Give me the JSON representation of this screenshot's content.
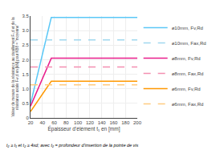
{
  "chart_data": {
    "type": "line",
    "x_label": "Épaisseur d’élément t₁ en [mm]",
    "y_label": "Valeur de mesure de la résistance au cisaillement Fᵥ,d et de la\nrésistance axiale Fₐˣ,d en [kN] pour KB8 = \"moyenne\"",
    "annotations": [
      "t₂ ≥ t₁ et t₂ ≥ 4xd; avec t₂ = profondeur d’insertion de la pointe de vis"
    ],
    "xlim": [
      20,
      200
    ],
    "ylim": [
      0.0,
      3.5
    ],
    "xticks": [
      20,
      40,
      60,
      80,
      100,
      120,
      140,
      160,
      180,
      200
    ],
    "yticks": [
      0,
      {
        "value": 0.5,
        "label": "0.5"
      },
      {
        "value": 1.0,
        "label": "1.0"
      },
      {
        "value": 1.5,
        "label": "1.5"
      },
      {
        "value": 2.0,
        "label": "2.0"
      },
      {
        "value": 2.5,
        "label": "2.5"
      },
      {
        "value": 3.0,
        "label": "3.0"
      },
      {
        "value": 3.5,
        "label": "3.5"
      }
    ],
    "grid": true,
    "legend": "right",
    "series": [
      {
        "name": "ø10mm, Fv,Rd",
        "color": "#5bc8f7",
        "line_style": "solid",
        "x": [
          20,
          55,
          200
        ],
        "values": [
          0.48,
          3.45,
          3.45
        ]
      },
      {
        "name": "ø10mm, Fax,Rd",
        "color": "#a0d8ef",
        "line_style": "dashed",
        "x": [
          20,
          200
        ],
        "values": [
          2.68,
          2.68
        ]
      },
      {
        "name": "ø8mm, Fv,Rd",
        "color": "#e91e8c",
        "line_style": "solid",
        "x": [
          20,
          55,
          200
        ],
        "values": [
          0.4,
          2.05,
          2.05
        ]
      },
      {
        "name": "ø8mm, Fax,Rd",
        "color": "#f48fb1",
        "line_style": "dashed",
        "x": [
          20,
          200
        ],
        "values": [
          1.75,
          1.75
        ]
      },
      {
        "name": "ø6mm, Fv,Rd",
        "color": "#ff9800",
        "line_style": "solid",
        "x": [
          20,
          55,
          200
        ],
        "values": [
          0.22,
          1.26,
          1.26
        ]
      },
      {
        "name": "ø6mm, Fax,Rd",
        "color": "#ffcc80",
        "line_style": "dashed",
        "x": [
          20,
          200
        ],
        "values": [
          1.14,
          1.14
        ]
      }
    ]
  }
}
